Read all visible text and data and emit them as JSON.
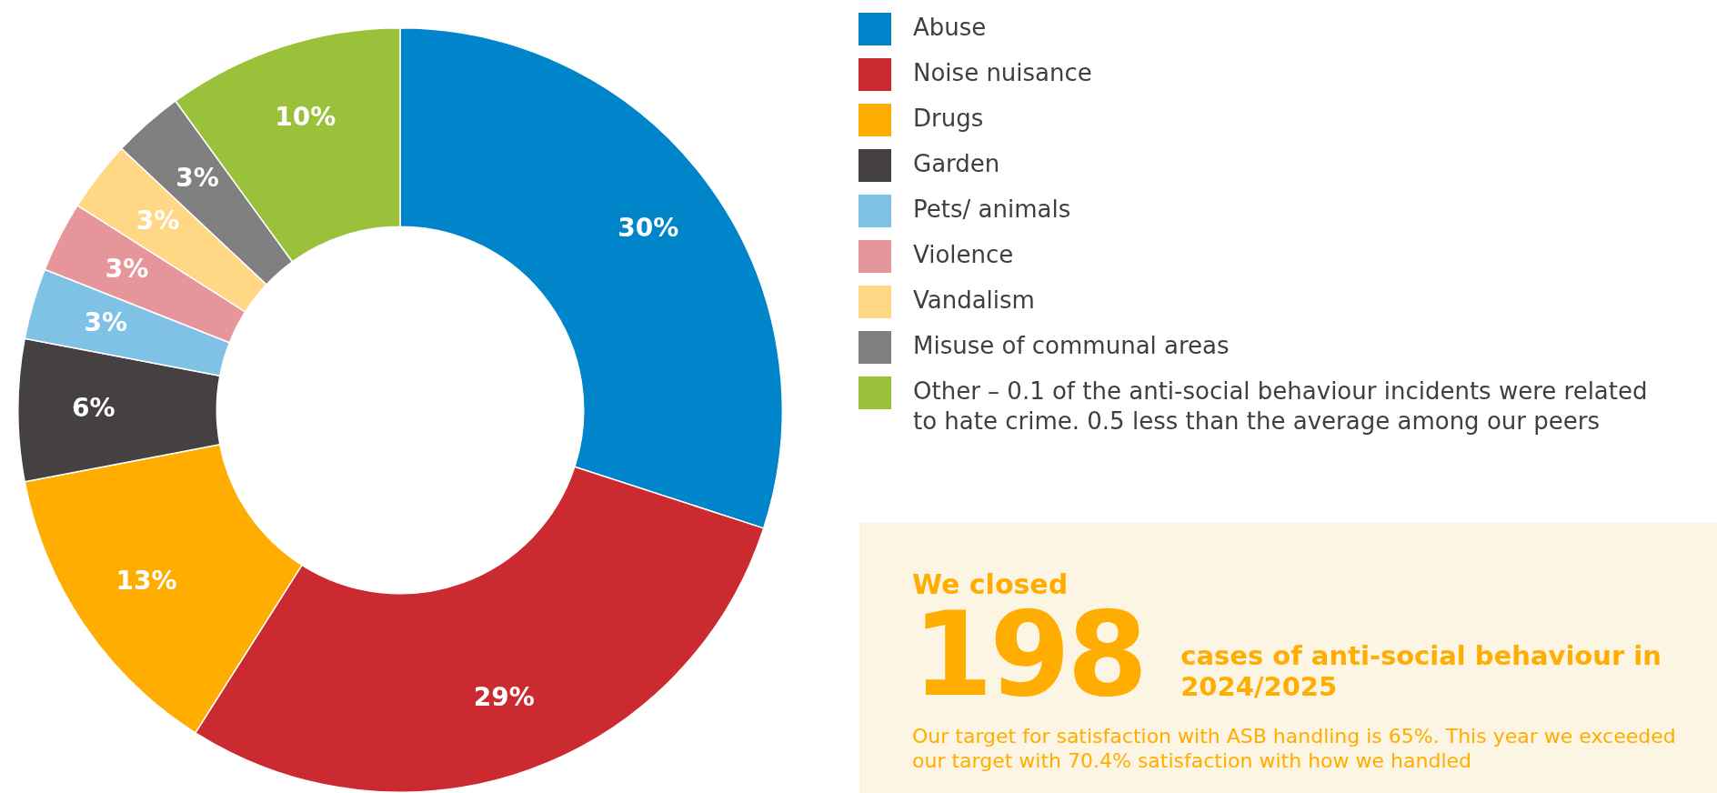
{
  "chart_data": {
    "type": "donut",
    "categories": [
      "Abuse",
      "Noise nuisance",
      "Drugs",
      "Garden",
      "Pets/ animals",
      "Violence",
      "Vandalism",
      "Misuse of communal areas",
      "Other – 0.1 of the anti-social behaviour incidents were related to hate crime. 0.5 less than the average among our peers"
    ],
    "values": [
      30,
      29,
      13,
      6,
      3,
      3,
      3,
      3,
      10
    ],
    "colors": [
      "#0084ca",
      "#cb2b30",
      "#ffad00",
      "#454142",
      "#80c2e6",
      "#e6959a",
      "#ffd785",
      "#808080",
      "#99c13a"
    ],
    "value_labels": [
      "30%",
      "29%",
      "13%",
      "6%",
      "3%",
      "3%",
      "3%",
      "3%",
      "10%"
    ],
    "legend": "right",
    "annotations": [
      "We closed",
      "198",
      "cases of anti-social behaviour in 2024/2025",
      "Our target for satisfaction with ASB handling is 65%. This year we exceeded our target with 70.4% satisfaction with how we handled"
    ]
  }
}
